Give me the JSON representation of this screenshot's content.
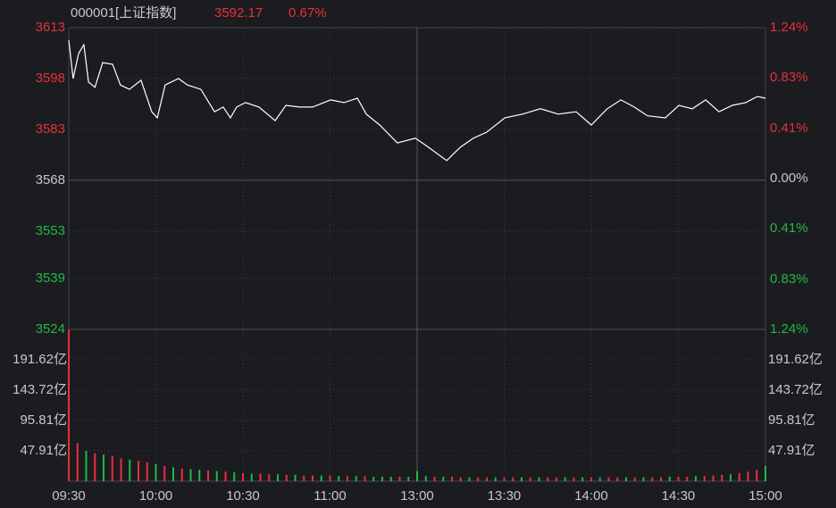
{
  "chart_data": [
    {
      "type": "line",
      "title": "000001[上证指数]",
      "last": 3592.17,
      "change": {
        "value": 0.67,
        "label": "0.67%"
      },
      "x": [
        0,
        1.5,
        3.4,
        5.2,
        6.8,
        9,
        11.7,
        15.1,
        17.8,
        20.9,
        24.9,
        28.6,
        30.5,
        33.2,
        37.8,
        40.9,
        45.5,
        50.2,
        53.2,
        55.7,
        57.8,
        60.9,
        65.5,
        71.1,
        74.8,
        79.4,
        84,
        90.2,
        94.8,
        99.4,
        102.5,
        107.1,
        113.2,
        119.4,
        124,
        130.2,
        134.8,
        139.4,
        144,
        150.2,
        156.3,
        162.5,
        168.6,
        174.8,
        180,
        185.5,
        190.2,
        194.8,
        199.4,
        205.5,
        210.2,
        214.8,
        219.4,
        224,
        228.6,
        233.2,
        237.2,
        240
      ],
      "series": [
        {
          "color": "#ffffff",
          "values": [
            3609.3,
            3598,
            3605.4,
            3608,
            3597,
            3595.4,
            3602.7,
            3602.2,
            3596.1,
            3594.8,
            3597.5,
            3588.2,
            3586.4,
            3596.1,
            3598,
            3596.1,
            3594.8,
            3588.2,
            3589.6,
            3586.4,
            3589.6,
            3590.9,
            3589.6,
            3585.6,
            3590.1,
            3589.6,
            3589.6,
            3591.7,
            3590.9,
            3592.2,
            3587.5,
            3584.3,
            3579,
            3580.4,
            3577.7,
            3573.8,
            3577.7,
            3580.4,
            3582.2,
            3586.4,
            3587.5,
            3589.1,
            3587.5,
            3588.2,
            3584.3,
            3589.1,
            3591.7,
            3589.6,
            3587,
            3586.4,
            3590.1,
            3589.1,
            3591.7,
            3588.2,
            3590.1,
            3590.9,
            3592.7,
            3592.2
          ]
        }
      ],
      "xlim": [
        0,
        240
      ],
      "ylim": [
        3524,
        3613
      ],
      "yticks": [
        3613,
        3598,
        3583,
        3568,
        3553,
        3539,
        3524
      ],
      "y2lim": [
        -1.24,
        1.24
      ],
      "y2ticks": [
        {
          "value": 1.24,
          "label": "1.24%"
        },
        {
          "value": 0.83,
          "label": "0.83%"
        },
        {
          "value": 0.41,
          "label": "0.41%"
        },
        {
          "value": 0,
          "label": "0.00%"
        },
        {
          "value": -0.41,
          "label": "0.41%"
        },
        {
          "value": -0.83,
          "label": "0.83%"
        },
        {
          "value": -1.24,
          "label": "1.24%"
        }
      ],
      "up_color": "#e8303a",
      "down_color": "#22b845",
      "flat_color": "#c8c8c8"
    },
    {
      "type": "bar",
      "x": [
        0,
        3,
        6,
        9,
        12,
        15,
        18,
        21,
        24,
        27,
        30,
        33,
        36,
        39,
        42,
        45,
        48,
        51,
        54,
        57,
        60,
        63,
        66,
        69,
        72,
        75,
        78,
        81,
        84,
        87,
        90,
        93,
        96,
        99,
        102,
        105,
        108,
        111,
        114,
        117,
        120,
        123,
        126,
        129,
        132,
        135,
        138,
        141,
        144,
        147,
        150,
        153,
        156,
        159,
        162,
        165,
        168,
        171,
        174,
        177,
        180,
        183,
        186,
        189,
        192,
        195,
        198,
        201,
        204,
        207,
        210,
        213,
        216,
        219,
        222,
        225,
        228,
        231,
        234,
        237,
        240
      ],
      "values": [
        239,
        60,
        48,
        44,
        42,
        40,
        36,
        34,
        32,
        30,
        27,
        24,
        22,
        20,
        19,
        18,
        17,
        16,
        15,
        14,
        13,
        12,
        12,
        11,
        11,
        10,
        10,
        9,
        9,
        9,
        9,
        8,
        8,
        8,
        8,
        7,
        7,
        7,
        7,
        7,
        16,
        8,
        7,
        7,
        7,
        6,
        6,
        6,
        6,
        6,
        6,
        6,
        6,
        6,
        6,
        6,
        6,
        6,
        6,
        6,
        6,
        6,
        6,
        6,
        6,
        6,
        6,
        6,
        6,
        7,
        7,
        7,
        8,
        8,
        9,
        10,
        11,
        13,
        15,
        18,
        24
      ],
      "colors": [
        "#e8303a",
        "#e8303a",
        "#22b845",
        "#e8303a",
        "#22b845",
        "#e8303a",
        "#e8303a",
        "#22b845",
        "#e8303a",
        "#e8303a",
        "#22b845",
        "#e8303a",
        "#22b845",
        "#e8303a",
        "#22b845",
        "#22b845",
        "#e8303a",
        "#22b845",
        "#e8303a",
        "#22b845",
        "#e8303a",
        "#22b845",
        "#e8303a",
        "#e8303a",
        "#22b845",
        "#e8303a",
        "#22b845",
        "#e8303a",
        "#e8303a",
        "#22b845",
        "#e8303a",
        "#22b845",
        "#e8303a",
        "#22b845",
        "#e8303a",
        "#22b845",
        "#22b845",
        "#22b845",
        "#e8303a",
        "#22b845",
        "#22b845",
        "#22b845",
        "#e8303a",
        "#22b845",
        "#e8303a",
        "#e8303a",
        "#22b845",
        "#e8303a",
        "#e8303a",
        "#22b845",
        "#e8303a",
        "#e8303a",
        "#22b845",
        "#e8303a",
        "#22b845",
        "#e8303a",
        "#e8303a",
        "#22b845",
        "#e8303a",
        "#22b845",
        "#e8303a",
        "#22b845",
        "#e8303a",
        "#e8303a",
        "#22b845",
        "#e8303a",
        "#22b845",
        "#e8303a",
        "#e8303a",
        "#22b845",
        "#e8303a",
        "#e8303a",
        "#22b845",
        "#e8303a",
        "#e8303a",
        "#e8303a",
        "#22b845",
        "#e8303a",
        "#e8303a",
        "#e8303a",
        "#22b845"
      ],
      "xlim": [
        0,
        240
      ],
      "xticks": [
        {
          "value": 0,
          "label": "09:30"
        },
        {
          "value": 30,
          "label": "10:00"
        },
        {
          "value": 60,
          "label": "10:30"
        },
        {
          "value": 90,
          "label": "11:00"
        },
        {
          "value": 120,
          "label": "13:00"
        },
        {
          "value": 150,
          "label": "13:30"
        },
        {
          "value": 180,
          "label": "14:00"
        },
        {
          "value": 210,
          "label": "14:30"
        },
        {
          "value": 240,
          "label": "15:00"
        }
      ],
      "ylim": [
        0,
        239.55
      ],
      "yticks": [
        {
          "value": 191.62,
          "label": "191.62亿"
        },
        {
          "value": 143.72,
          "label": "143.72亿"
        },
        {
          "value": 95.81,
          "label": "95.81亿"
        },
        {
          "value": 47.91,
          "label": "47.91亿"
        }
      ]
    }
  ]
}
